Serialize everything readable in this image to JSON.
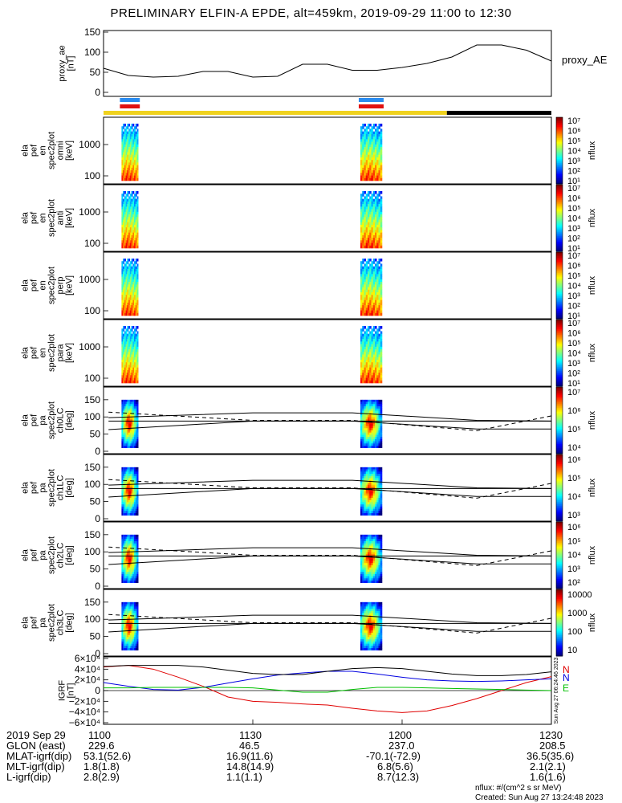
{
  "title": "PRELIMINARY ELFIN-A EPDE, alt=459km, 2019-09-29 11:00 to 12:30",
  "colors": {
    "science_bar": "#f0d21e",
    "night_bar": "#000000",
    "marker_blue": "#2a8cf0",
    "marker_red": "#e01010",
    "bfield_x": "#e00000",
    "bfield_y": "#0000e0",
    "bfield_z": "#00c000",
    "bfield_mag": "#000000"
  },
  "panels": {
    "ae": {
      "ylabel": [
        "proxy_ae",
        "[nT]"
      ],
      "legend": "proxy_AE",
      "yticks": [
        "150",
        "100",
        "50",
        "0"
      ]
    },
    "spec": [
      {
        "ylabel": [
          "ela",
          "pef",
          "en",
          "spec2plot",
          "omni",
          "[keV]"
        ],
        "cbar_label": "nflux",
        "yticks": [
          "1000",
          "100"
        ],
        "cbar_ticks": [
          "10⁷",
          "10⁶",
          "10⁵",
          "10⁴",
          "10³",
          "10²",
          "10¹"
        ]
      },
      {
        "ylabel": [
          "ela",
          "pef",
          "en",
          "spec2plot",
          "anti",
          "[keV]"
        ],
        "cbar_label": "nflux",
        "yticks": [
          "1000",
          "100"
        ],
        "cbar_ticks": [
          "10⁷",
          "10⁶",
          "10⁵",
          "10⁴",
          "10³",
          "10²",
          "10¹"
        ]
      },
      {
        "ylabel": [
          "ela",
          "pef",
          "en",
          "spec2plot",
          "perp",
          "[keV]"
        ],
        "cbar_label": "nflux",
        "yticks": [
          "1000",
          "100"
        ],
        "cbar_ticks": [
          "10⁷",
          "10⁶",
          "10⁵",
          "10⁴",
          "10³",
          "10²",
          "10¹"
        ]
      },
      {
        "ylabel": [
          "ela",
          "pef",
          "en",
          "spec2plot",
          "para",
          "[keV]"
        ],
        "cbar_label": "nflux",
        "yticks": [
          "1000",
          "100"
        ],
        "cbar_ticks": [
          "10⁷",
          "10⁶",
          "10⁵",
          "10⁴",
          "10³",
          "10²",
          "10¹"
        ]
      }
    ],
    "pa": [
      {
        "ylabel": [
          "ela",
          "pef",
          "pa",
          "spec2plot",
          "ch0LC",
          "[deg]"
        ],
        "cbar_label": "nflux",
        "yticks": [
          "150",
          "100",
          "50",
          "0"
        ],
        "cbar_ticks": [
          "10⁷",
          "10⁶",
          "10⁵",
          "10⁴"
        ]
      },
      {
        "ylabel": [
          "ela",
          "pef",
          "pa",
          "spec2plot",
          "ch1LC",
          "[deg]"
        ],
        "cbar_label": "nflux",
        "yticks": [
          "150",
          "100",
          "50",
          "0"
        ],
        "cbar_ticks": [
          "10⁶",
          "10⁵",
          "10⁴",
          "10³"
        ]
      },
      {
        "ylabel": [
          "ela",
          "pef",
          "pa",
          "spec2plot",
          "ch2LC",
          "[deg]"
        ],
        "cbar_label": "nflux",
        "yticks": [
          "150",
          "100",
          "50",
          "0"
        ],
        "cbar_ticks": [
          "10⁶",
          "10⁵",
          "10⁴",
          "10³",
          "10²"
        ]
      },
      {
        "ylabel": [
          "ela",
          "pef",
          "pa",
          "spec2plot",
          "ch3LC",
          "[deg]"
        ],
        "cbar_label": "nflux",
        "yticks": [
          "150",
          "100",
          "50",
          "0"
        ],
        "cbar_ticks": [
          "10000",
          "1000",
          "100",
          "10"
        ]
      }
    ],
    "igrf": {
      "ylabel": [
        "IGRF",
        "[nT]"
      ],
      "yticks": [
        "6×10⁴",
        "4×10⁴",
        "2×10⁴",
        "0",
        "−2×10⁴",
        "−4×10⁴",
        "−6×10⁴"
      ],
      "legend": [
        "N",
        "N",
        "E"
      ],
      "stamp": "Sun Aug 27 06:24:46 2023"
    }
  },
  "chart_data": {
    "type": "line",
    "x_range": [
      "2019-09-29 11:00",
      "2019-09-29 12:30"
    ],
    "proxy_ae": {
      "x_min": [
        0,
        5,
        10,
        15,
        20,
        25,
        30,
        35,
        40,
        45,
        50,
        55,
        60,
        65,
        70,
        75,
        80,
        85,
        90
      ],
      "values": [
        60,
        42,
        38,
        40,
        52,
        52,
        38,
        40,
        70,
        70,
        55,
        55,
        62,
        72,
        88,
        118,
        118,
        105,
        78
      ],
      "ylim": [
        0,
        150
      ]
    },
    "bands": {
      "science_min": [
        0,
        69
      ],
      "night_min": [
        69,
        90
      ],
      "markers_min": [
        [
          2,
          6
        ],
        [
          50,
          55
        ]
      ]
    },
    "spectrogram_bursts_min": [
      [
        2,
        6
      ],
      [
        50,
        55
      ]
    ],
    "energy_range_keV": [
      63,
      7000
    ],
    "pitch_angle_lines": {
      "x_min": [
        1,
        30,
        50,
        75,
        90
      ],
      "upper_solid": [
        98,
        112,
        112,
        90,
        88
      ],
      "lower_solid": [
        63,
        88,
        88,
        65,
        65
      ],
      "dashed": [
        114,
        90,
        90,
        60,
        103
      ],
      "middle_solid": [
        88,
        88,
        88,
        88,
        88
      ]
    },
    "igrf_nT": {
      "x_min": [
        0,
        5,
        10,
        15,
        20,
        25,
        30,
        35,
        40,
        45,
        50,
        55,
        60,
        65,
        70,
        75,
        80,
        85,
        90
      ],
      "red": [
        44000,
        47000,
        40000,
        25000,
        8000,
        -12000,
        -20000,
        -22000,
        -25000,
        -27000,
        -33000,
        -38000,
        -41000,
        -38000,
        -28000,
        -15000,
        0,
        15000,
        26000
      ],
      "blue": [
        15000,
        8000,
        2000,
        1000,
        6000,
        14000,
        22000,
        29000,
        33000,
        36000,
        36000,
        31000,
        25000,
        20000,
        18000,
        17000,
        18000,
        20000,
        22000
      ],
      "green": [
        5000,
        5000,
        6000,
        6000,
        6000,
        6000,
        5000,
        1000,
        -3000,
        -3000,
        2000,
        6000,
        6000,
        5000,
        4000,
        3000,
        2000,
        1000,
        0
      ],
      "black": [
        45000,
        47000,
        47000,
        47000,
        44000,
        38000,
        32000,
        30000,
        30000,
        36000,
        41000,
        43000,
        41000,
        36000,
        31000,
        28000,
        28000,
        30000,
        35000
      ],
      "ylim": [
        -60000,
        60000
      ]
    }
  },
  "footer": {
    "rows": [
      {
        "label": "2019 Sep 29",
        "values": [
          "1100",
          "1130",
          "1200",
          "1230"
        ]
      },
      {
        "label": "GLON (east)",
        "values": [
          "229.6",
          "46.5",
          "237.0",
          "208.5"
        ]
      },
      {
        "label": "MLAT-igrf(dip)",
        "values": [
          "53.1(52.6)",
          "16.9(11.6)",
          "-70.1(-72.9)",
          "36.5(35.6)"
        ]
      },
      {
        "label": "MLT-igrf(dip)",
        "values": [
          "1.8(1.8)",
          "14.8(14.9)",
          "6.8(5.6)",
          "2.1(2.1)"
        ]
      },
      {
        "label": "L-igrf(dip)",
        "values": [
          "2.8(2.9)",
          "1.1(1.1)",
          "8.7(12.3)",
          "1.6(1.6)"
        ]
      }
    ],
    "units": "nflux: #/(cm^2 s sr MeV)",
    "created": "Created: Sun Aug 27 13:24:48 2023"
  }
}
